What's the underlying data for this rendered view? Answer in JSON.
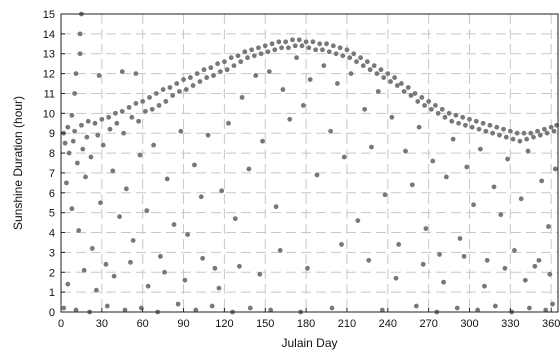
{
  "chart_data": {
    "type": "scatter",
    "title": "",
    "xlabel": "Julain Day",
    "ylabel": "Sunshine Duration (hour)",
    "xlim": [
      0,
      365
    ],
    "ylim": [
      0,
      15
    ],
    "x_ticks": [
      "0",
      "30",
      "60",
      "90",
      "120",
      "150",
      "180",
      "210",
      "240",
      "270",
      "300",
      "330",
      "360"
    ],
    "y_ticks": [
      "0",
      "1",
      "2",
      "3",
      "4",
      "5",
      "6",
      "7",
      "8",
      "9",
      "10",
      "11",
      "12",
      "13",
      "14",
      "15"
    ],
    "grid": true,
    "marker_color": "#787878",
    "series": [
      {
        "name": "",
        "points": [
          [
            15,
            15.0
          ],
          [
            14,
            14.0
          ],
          [
            14,
            13.0
          ],
          [
            11,
            12.0
          ],
          [
            10,
            11.0
          ],
          [
            8,
            9.9
          ],
          [
            28,
            11.9
          ],
          [
            45,
            12.1
          ],
          [
            55,
            12.0
          ],
          [
            2,
            9.0
          ],
          [
            5,
            9.3
          ],
          [
            10,
            9.1
          ],
          [
            15,
            9.4
          ],
          [
            20,
            9.6
          ],
          [
            25,
            9.5
          ],
          [
            30,
            9.7
          ],
          [
            35,
            9.8
          ],
          [
            40,
            10.0
          ],
          [
            45,
            10.1
          ],
          [
            50,
            10.3
          ],
          [
            55,
            10.5
          ],
          [
            60,
            10.6
          ],
          [
            65,
            10.8
          ],
          [
            70,
            11.0
          ],
          [
            75,
            11.2
          ],
          [
            80,
            11.3
          ],
          [
            85,
            11.5
          ],
          [
            90,
            11.7
          ],
          [
            95,
            11.8
          ],
          [
            100,
            12.0
          ],
          [
            105,
            12.2
          ],
          [
            110,
            12.3
          ],
          [
            115,
            12.5
          ],
          [
            120,
            12.6
          ],
          [
            125,
            12.8
          ],
          [
            130,
            12.9
          ],
          [
            135,
            13.1
          ],
          [
            140,
            13.2
          ],
          [
            145,
            13.3
          ],
          [
            150,
            13.4
          ],
          [
            155,
            13.5
          ],
          [
            160,
            13.6
          ],
          [
            165,
            13.6
          ],
          [
            170,
            13.7
          ],
          [
            175,
            13.7
          ],
          [
            180,
            13.6
          ],
          [
            185,
            13.6
          ],
          [
            190,
            13.5
          ],
          [
            195,
            13.5
          ],
          [
            200,
            13.4
          ],
          [
            205,
            13.3
          ],
          [
            210,
            13.2
          ],
          [
            215,
            13.0
          ],
          [
            220,
            12.8
          ],
          [
            225,
            12.6
          ],
          [
            230,
            12.4
          ],
          [
            235,
            12.2
          ],
          [
            240,
            12.0
          ],
          [
            245,
            11.8
          ],
          [
            250,
            11.5
          ],
          [
            255,
            11.3
          ],
          [
            260,
            11.0
          ],
          [
            265,
            10.8
          ],
          [
            270,
            10.6
          ],
          [
            275,
            10.4
          ],
          [
            280,
            10.2
          ],
          [
            285,
            10.0
          ],
          [
            290,
            9.9
          ],
          [
            295,
            9.8
          ],
          [
            300,
            9.7
          ],
          [
            305,
            9.6
          ],
          [
            310,
            9.5
          ],
          [
            315,
            9.4
          ],
          [
            320,
            9.3
          ],
          [
            325,
            9.2
          ],
          [
            330,
            9.1
          ],
          [
            335,
            9.0
          ],
          [
            340,
            9.0
          ],
          [
            345,
            9.0
          ],
          [
            350,
            9.1
          ],
          [
            355,
            9.2
          ],
          [
            360,
            9.3
          ],
          [
            364,
            9.4
          ],
          [
            3,
            8.5
          ],
          [
            6,
            8.0
          ],
          [
            9,
            8.6
          ],
          [
            12,
            7.5
          ],
          [
            16,
            8.2
          ],
          [
            19,
            8.8
          ],
          [
            22,
            7.8
          ],
          [
            27,
            8.9
          ],
          [
            31,
            8.4
          ],
          [
            36,
            9.2
          ],
          [
            41,
            9.5
          ],
          [
            46,
            9.0
          ],
          [
            52,
            9.8
          ],
          [
            57,
            9.6
          ],
          [
            62,
            10.1
          ],
          [
            67,
            10.2
          ],
          [
            72,
            10.4
          ],
          [
            77,
            10.6
          ],
          [
            82,
            10.9
          ],
          [
            87,
            11.1
          ],
          [
            92,
            11.2
          ],
          [
            97,
            11.4
          ],
          [
            102,
            11.6
          ],
          [
            107,
            11.8
          ],
          [
            112,
            11.9
          ],
          [
            117,
            12.1
          ],
          [
            122,
            12.2
          ],
          [
            127,
            12.4
          ],
          [
            132,
            12.6
          ],
          [
            137,
            12.8
          ],
          [
            142,
            12.9
          ],
          [
            147,
            13.0
          ],
          [
            152,
            13.1
          ],
          [
            157,
            13.2
          ],
          [
            162,
            13.3
          ],
          [
            167,
            13.3
          ],
          [
            172,
            13.4
          ],
          [
            177,
            13.4
          ],
          [
            182,
            13.3
          ],
          [
            187,
            13.2
          ],
          [
            192,
            13.2
          ],
          [
            197,
            13.1
          ],
          [
            202,
            13.0
          ],
          [
            207,
            12.9
          ],
          [
            212,
            12.8
          ],
          [
            217,
            12.6
          ],
          [
            222,
            12.4
          ],
          [
            227,
            12.2
          ],
          [
            232,
            12.0
          ],
          [
            237,
            11.8
          ],
          [
            242,
            11.6
          ],
          [
            247,
            11.4
          ],
          [
            252,
            11.1
          ],
          [
            257,
            10.9
          ],
          [
            262,
            10.6
          ],
          [
            267,
            10.4
          ],
          [
            272,
            10.2
          ],
          [
            277,
            10.0
          ],
          [
            282,
            9.8
          ],
          [
            287,
            9.6
          ],
          [
            292,
            9.5
          ],
          [
            297,
            9.4
          ],
          [
            302,
            9.3
          ],
          [
            307,
            9.2
          ],
          [
            312,
            9.1
          ],
          [
            317,
            9.0
          ],
          [
            322,
            8.9
          ],
          [
            327,
            8.8
          ],
          [
            332,
            8.7
          ],
          [
            337,
            8.6
          ],
          [
            342,
            8.7
          ],
          [
            347,
            8.8
          ],
          [
            352,
            8.9
          ],
          [
            357,
            9.0
          ],
          [
            362,
            9.1
          ],
          [
            4,
            6.5
          ],
          [
            8,
            5.2
          ],
          [
            13,
            4.1
          ],
          [
            18,
            6.8
          ],
          [
            23,
            3.2
          ],
          [
            29,
            5.5
          ],
          [
            33,
            2.4
          ],
          [
            38,
            7.1
          ],
          [
            43,
            4.8
          ],
          [
            48,
            6.2
          ],
          [
            53,
            3.6
          ],
          [
            58,
            7.9
          ],
          [
            63,
            5.1
          ],
          [
            68,
            8.4
          ],
          [
            73,
            2.8
          ],
          [
            78,
            6.7
          ],
          [
            83,
            4.4
          ],
          [
            88,
            9.1
          ],
          [
            93,
            3.9
          ],
          [
            98,
            7.4
          ],
          [
            103,
            5.8
          ],
          [
            108,
            8.9
          ],
          [
            113,
            2.2
          ],
          [
            118,
            6.1
          ],
          [
            123,
            9.5
          ],
          [
            128,
            4.7
          ],
          [
            133,
            10.8
          ],
          [
            138,
            7.2
          ],
          [
            143,
            11.9
          ],
          [
            148,
            8.6
          ],
          [
            153,
            12.1
          ],
          [
            158,
            5.3
          ],
          [
            163,
            11.2
          ],
          [
            168,
            9.7
          ],
          [
            173,
            12.8
          ],
          [
            178,
            10.4
          ],
          [
            183,
            11.7
          ],
          [
            188,
            6.9
          ],
          [
            193,
            12.4
          ],
          [
            198,
            9.1
          ],
          [
            203,
            11.5
          ],
          [
            208,
            7.8
          ],
          [
            213,
            12.0
          ],
          [
            218,
            4.6
          ],
          [
            223,
            10.2
          ],
          [
            228,
            8.3
          ],
          [
            233,
            11.1
          ],
          [
            238,
            5.9
          ],
          [
            243,
            9.8
          ],
          [
            248,
            3.4
          ],
          [
            253,
            8.1
          ],
          [
            258,
            6.4
          ],
          [
            263,
            9.3
          ],
          [
            268,
            4.2
          ],
          [
            273,
            7.6
          ],
          [
            278,
            2.9
          ],
          [
            283,
            6.8
          ],
          [
            288,
            8.7
          ],
          [
            293,
            3.7
          ],
          [
            298,
            7.3
          ],
          [
            303,
            5.4
          ],
          [
            308,
            8.2
          ],
          [
            313,
            2.6
          ],
          [
            318,
            6.3
          ],
          [
            323,
            4.9
          ],
          [
            328,
            7.7
          ],
          [
            333,
            3.1
          ],
          [
            338,
            5.7
          ],
          [
            343,
            8.1
          ],
          [
            348,
            2.3
          ],
          [
            353,
            6.6
          ],
          [
            358,
            4.3
          ],
          [
            363,
            7.2
          ],
          [
            2,
            0.2
          ],
          [
            11,
            0.1
          ],
          [
            21,
            0.0
          ],
          [
            34,
            0.3
          ],
          [
            47,
            0.1
          ],
          [
            59,
            0.2
          ],
          [
            71,
            0.0
          ],
          [
            86,
            0.4
          ],
          [
            99,
            0.1
          ],
          [
            111,
            0.3
          ],
          [
            126,
            0.0
          ],
          [
            139,
            0.2
          ],
          [
            154,
            0.1
          ],
          [
            176,
            0.0
          ],
          [
            199,
            0.2
          ],
          [
            236,
            0.1
          ],
          [
            261,
            0.3
          ],
          [
            276,
            0.0
          ],
          [
            291,
            0.2
          ],
          [
            306,
            0.1
          ],
          [
            319,
            0.3
          ],
          [
            331,
            0.0
          ],
          [
            344,
            0.2
          ],
          [
            356,
            0.1
          ],
          [
            361,
            0.4
          ],
          [
            5,
            1.4
          ],
          [
            17,
            2.1
          ],
          [
            26,
            1.1
          ],
          [
            39,
            1.8
          ],
          [
            51,
            2.5
          ],
          [
            64,
            1.3
          ],
          [
            76,
            2.0
          ],
          [
            91,
            1.6
          ],
          [
            104,
            2.7
          ],
          [
            116,
            1.2
          ],
          [
            131,
            2.3
          ],
          [
            146,
            1.9
          ],
          [
            161,
            3.1
          ],
          [
            181,
            2.2
          ],
          [
            206,
            3.4
          ],
          [
            226,
            2.6
          ],
          [
            246,
            1.7
          ],
          [
            266,
            2.4
          ],
          [
            281,
            1.5
          ],
          [
            296,
            2.8
          ],
          [
            311,
            1.3
          ],
          [
            326,
            2.2
          ],
          [
            341,
            1.6
          ],
          [
            351,
            2.6
          ],
          [
            359,
            1.9
          ]
        ]
      }
    ]
  }
}
